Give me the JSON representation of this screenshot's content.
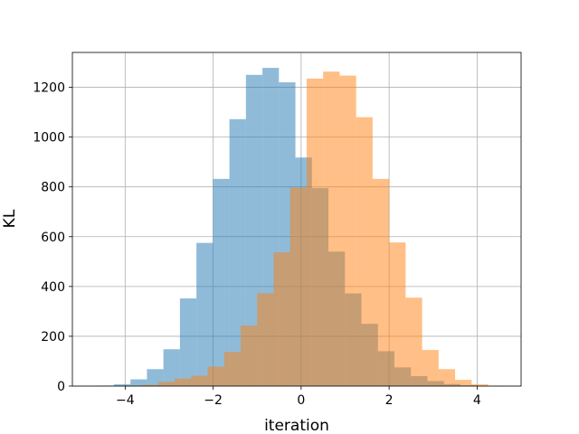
{
  "chart_data": {
    "type": "bar",
    "title": "",
    "xlabel": "iteration",
    "ylabel": "KL",
    "xlim": [
      -5.2,
      5.0
    ],
    "ylim": [
      0,
      1340
    ],
    "grid": true,
    "legend": "none",
    "x_ticks": [
      -4,
      -2,
      0,
      2,
      4
    ],
    "x_tick_labels": [
      "−4",
      "−2",
      "0",
      "2",
      "4"
    ],
    "y_ticks": [
      0,
      200,
      400,
      600,
      800,
      1000,
      1200
    ],
    "y_tick_labels": [
      "0",
      "200",
      "400",
      "600",
      "800",
      "1000",
      "1200"
    ],
    "bin_width": 0.375,
    "series": [
      {
        "color": "#1f77b4",
        "opacity": 0.5,
        "bins": [
          {
            "x0": -4.63,
            "value": 2
          },
          {
            "x0": -4.255,
            "value": 7
          },
          {
            "x0": -3.88,
            "value": 27
          },
          {
            "x0": -3.505,
            "value": 68
          },
          {
            "x0": -3.13,
            "value": 148
          },
          {
            "x0": -2.755,
            "value": 352
          },
          {
            "x0": -2.38,
            "value": 575
          },
          {
            "x0": -2.005,
            "value": 832
          },
          {
            "x0": -1.63,
            "value": 1072
          },
          {
            "x0": -1.255,
            "value": 1250
          },
          {
            "x0": -0.88,
            "value": 1278
          },
          {
            "x0": -0.505,
            "value": 1220
          },
          {
            "x0": -0.13,
            "value": 918
          },
          {
            "x0": 0.245,
            "value": 795
          },
          {
            "x0": 0.62,
            "value": 540
          },
          {
            "x0": 0.995,
            "value": 372
          },
          {
            "x0": 1.37,
            "value": 250
          },
          {
            "x0": 1.745,
            "value": 140
          },
          {
            "x0": 2.12,
            "value": 75
          },
          {
            "x0": 2.495,
            "value": 40
          },
          {
            "x0": 2.87,
            "value": 20
          },
          {
            "x0": 3.245,
            "value": 8
          },
          {
            "x0": 3.62,
            "value": 3
          }
        ]
      },
      {
        "color": "#ff7f0e",
        "opacity": 0.5,
        "bins": [
          {
            "x0": -4.0,
            "value": 2
          },
          {
            "x0": -3.625,
            "value": 5
          },
          {
            "x0": -3.25,
            "value": 17
          },
          {
            "x0": -2.875,
            "value": 30
          },
          {
            "x0": -2.5,
            "value": 42
          },
          {
            "x0": -2.125,
            "value": 78
          },
          {
            "x0": -1.75,
            "value": 137
          },
          {
            "x0": -1.375,
            "value": 243
          },
          {
            "x0": -1.0,
            "value": 373
          },
          {
            "x0": -0.625,
            "value": 537
          },
          {
            "x0": -0.25,
            "value": 797
          },
          {
            "x0": 0.125,
            "value": 1235
          },
          {
            "x0": 0.5,
            "value": 1263
          },
          {
            "x0": 0.875,
            "value": 1247
          },
          {
            "x0": 1.25,
            "value": 1080
          },
          {
            "x0": 1.625,
            "value": 832
          },
          {
            "x0": 2.0,
            "value": 577
          },
          {
            "x0": 2.375,
            "value": 355
          },
          {
            "x0": 2.75,
            "value": 145
          },
          {
            "x0": 3.125,
            "value": 68
          },
          {
            "x0": 3.5,
            "value": 25
          },
          {
            "x0": 3.875,
            "value": 7
          },
          {
            "x0": 4.25,
            "value": 2
          }
        ]
      }
    ]
  }
}
